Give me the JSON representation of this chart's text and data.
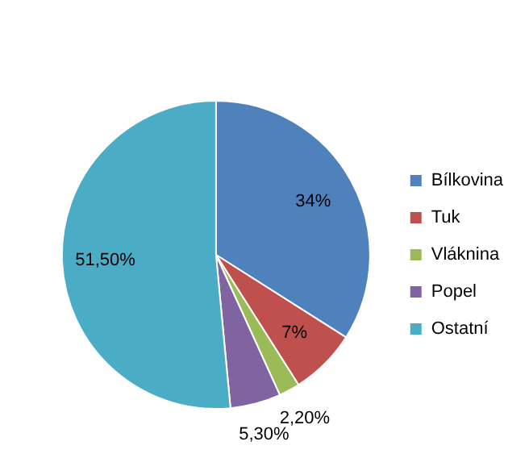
{
  "chart_data": {
    "type": "pie",
    "categories": [
      "Bílkovina",
      "Tuk",
      "Vláknina",
      "Popel",
      "Ostatní"
    ],
    "values": [
      34,
      7,
      2.2,
      5.3,
      51.5
    ],
    "colors": [
      "#4f81bd",
      "#c0504d",
      "#9bbb59",
      "#8064a2",
      "#4bacc6"
    ],
    "value_labels": [
      "34%",
      "7%",
      "2,20%",
      "5,30%",
      "51,50%"
    ],
    "legend": "right"
  }
}
